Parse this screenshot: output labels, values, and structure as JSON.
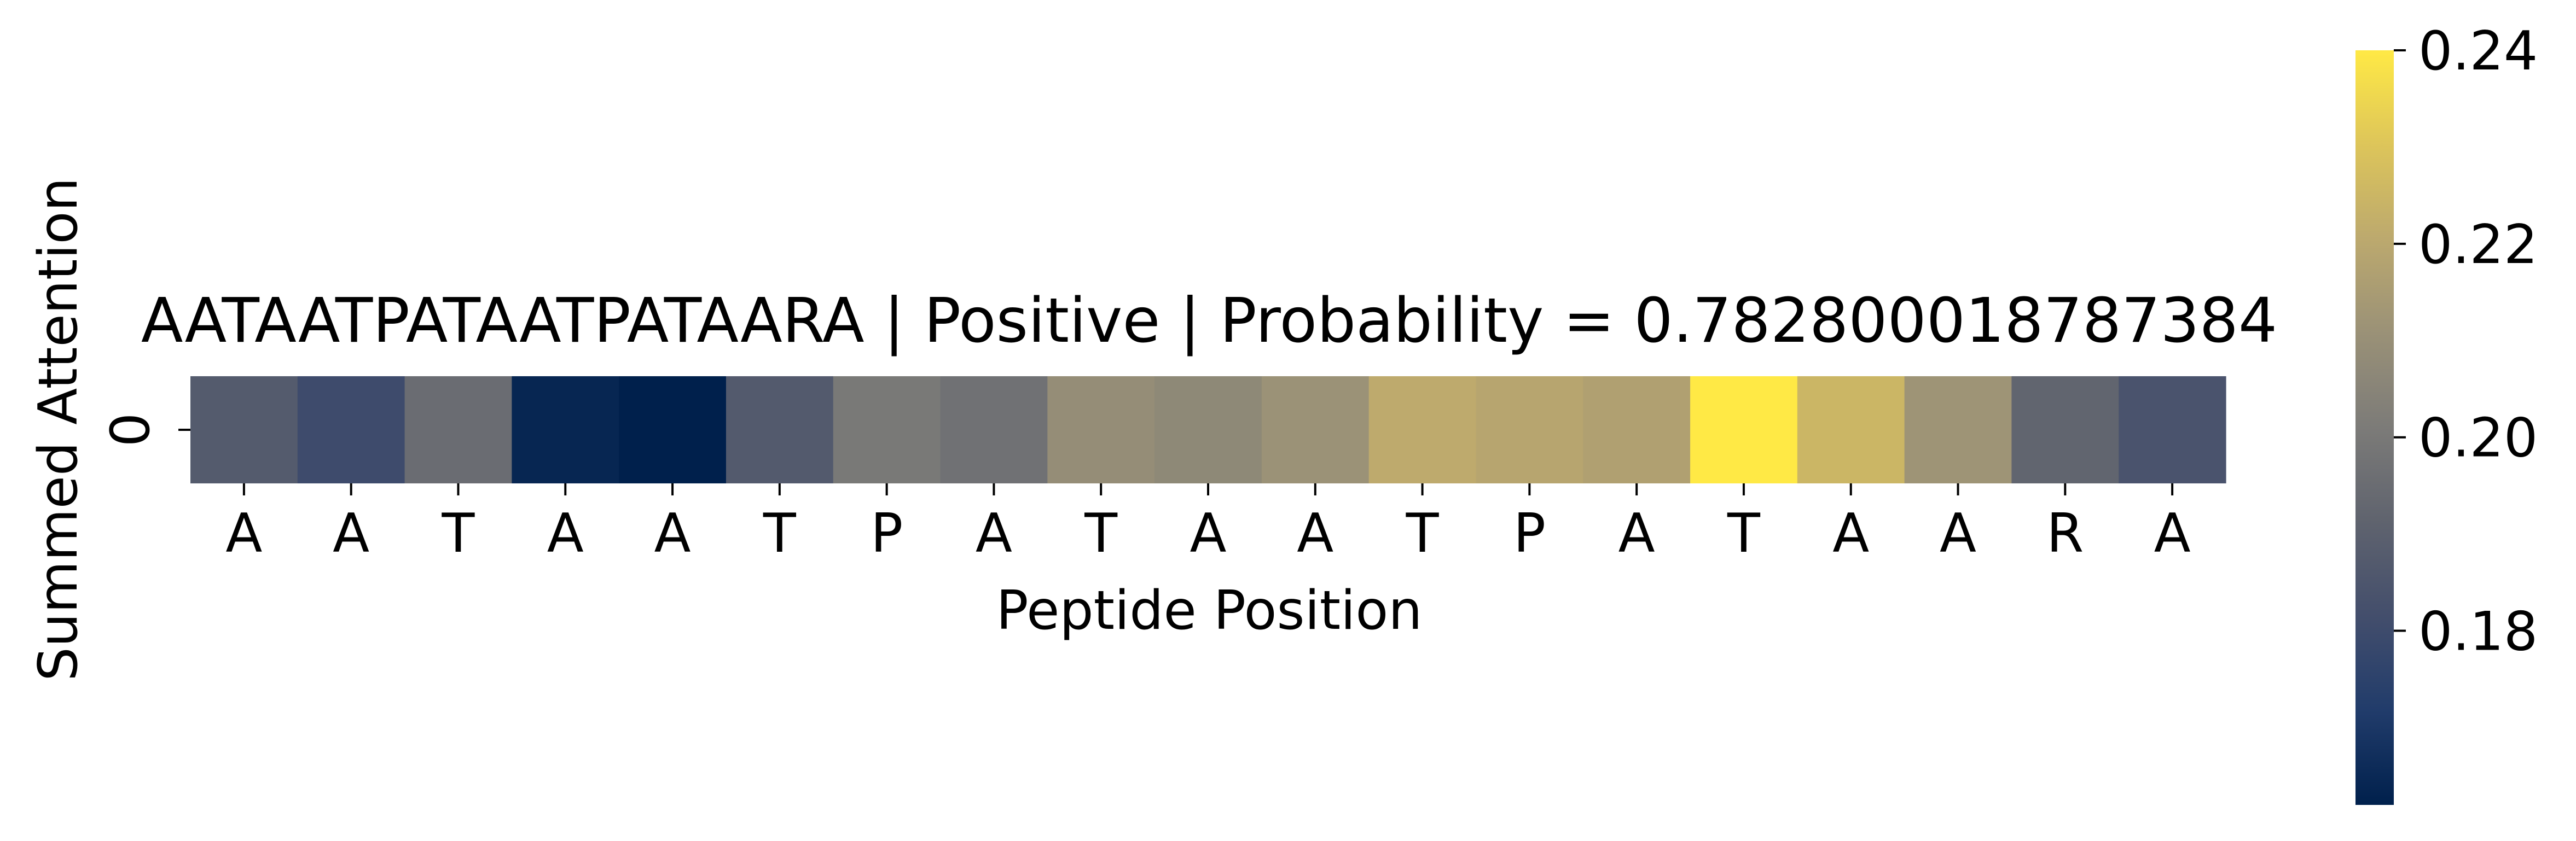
{
  "chart_data": {
    "type": "heatmap",
    "title": "AATAATPATAATPATAARA | Positive | Probability = 0.782800018787384",
    "xlabel": "Peptide Position",
    "ylabel": "Summed Attention",
    "y_categories": [
      "0"
    ],
    "x_categories": [
      "A",
      "A",
      "T",
      "A",
      "A",
      "T",
      "P",
      "A",
      "T",
      "A",
      "A",
      "T",
      "P",
      "A",
      "T",
      "A",
      "A",
      "R",
      "A"
    ],
    "values": [
      [
        0.1875,
        0.18,
        0.195,
        0.164,
        0.162,
        0.187,
        0.2,
        0.197,
        0.209,
        0.207,
        0.211,
        0.221,
        0.219,
        0.217,
        0.24,
        0.225,
        0.212,
        0.192,
        0.184
      ]
    ],
    "colormap": "cividis",
    "colorbar": {
      "vmin": 0.162,
      "vmax": 0.24,
      "ticks": [
        0.18,
        0.2,
        0.22,
        0.24
      ],
      "tick_labels": [
        "0.18",
        "0.20",
        "0.22",
        "0.24"
      ]
    }
  }
}
